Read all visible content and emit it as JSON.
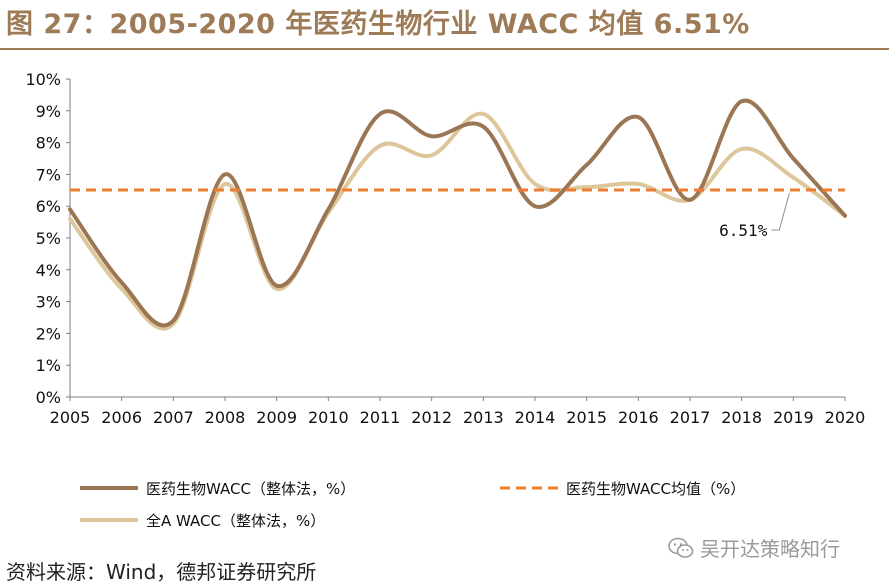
{
  "figure": {
    "title": "图 27：2005-2020 年医药生物行业 WACC 均值 6.51%",
    "source": "资料来源：Wind，德邦证券研究所",
    "watermark": "吴开达策略知行",
    "watermark_icon": "wechat-icon"
  },
  "colors": {
    "title": "#9d7b56",
    "pharma": "#9b7654",
    "allA": "#dcc69a",
    "avg": "#ed7d31",
    "axis": "#7f7f7f"
  },
  "chart_data": {
    "type": "line",
    "title": "2005-2020 年医药生物行业 WACC 均值 6.51%",
    "xlabel": "",
    "ylabel": "",
    "x": [
      "2005",
      "2006",
      "2007",
      "2008",
      "2009",
      "2010",
      "2011",
      "2012",
      "2013",
      "2014",
      "2015",
      "2016",
      "2017",
      "2018",
      "2019",
      "2020"
    ],
    "ylim": [
      0,
      10
    ],
    "ytick_labels": [
      "0%",
      "1%",
      "2%",
      "3%",
      "4%",
      "5%",
      "6%",
      "7%",
      "8%",
      "9%",
      "10%"
    ],
    "grid": false,
    "legend_position": "bottom",
    "series": [
      {
        "key": "pharma",
        "name": "医药生物WACC（整体法，%）",
        "style": "solid",
        "values": [
          5.9,
          3.6,
          2.4,
          7.0,
          3.5,
          5.9,
          8.9,
          8.2,
          8.5,
          6.0,
          7.3,
          8.8,
          6.2,
          9.3,
          7.5,
          5.7
        ]
      },
      {
        "key": "allA",
        "name": "全A WACC（整体法，%）",
        "style": "solid",
        "values": [
          5.6,
          3.4,
          2.3,
          6.7,
          3.4,
          5.8,
          7.9,
          7.6,
          8.9,
          6.7,
          6.6,
          6.7,
          6.2,
          7.8,
          6.9,
          5.7
        ]
      },
      {
        "key": "avg",
        "name": "医药生物WACC均值（%）",
        "style": "dashed",
        "values": [
          6.51,
          6.51,
          6.51,
          6.51,
          6.51,
          6.51,
          6.51,
          6.51,
          6.51,
          6.51,
          6.51,
          6.51,
          6.51,
          6.51,
          6.51,
          6.51
        ]
      }
    ],
    "annotations": [
      {
        "text": "6.51%",
        "target_series": "avg",
        "x": "2019",
        "value": 6.51
      }
    ]
  }
}
